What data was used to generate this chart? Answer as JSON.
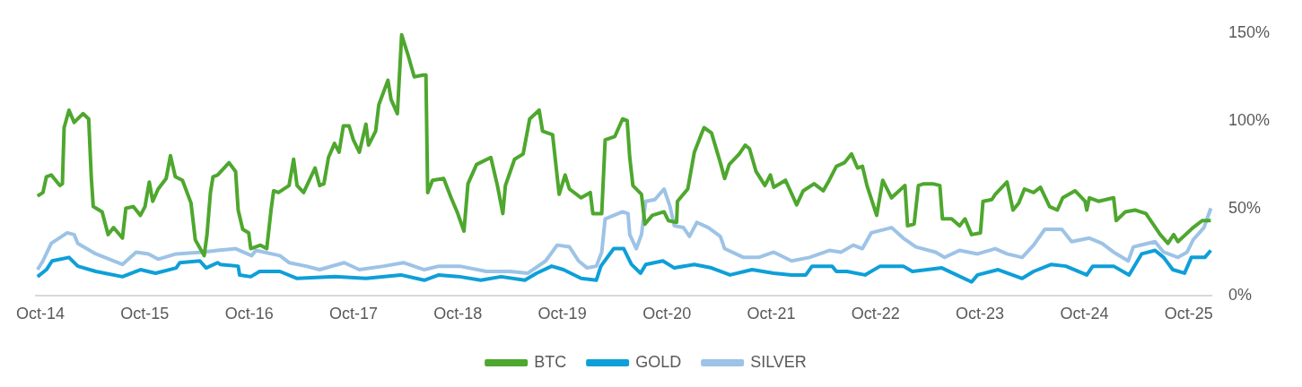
{
  "chart_data": {
    "type": "line",
    "xlim": [
      "2014-09-15",
      "2025-12-22"
    ],
    "xticks": [
      {
        "value": "2014-10",
        "label": "Oct-14"
      },
      {
        "value": "2015-10",
        "label": "Oct-15"
      },
      {
        "value": "2016-10",
        "label": "Oct-16"
      },
      {
        "value": "2017-10",
        "label": "Oct-17"
      },
      {
        "value": "2018-10",
        "label": "Oct-18"
      },
      {
        "value": "2019-10",
        "label": "Oct-19"
      },
      {
        "value": "2020-10",
        "label": "Oct-20"
      },
      {
        "value": "2021-10",
        "label": "Oct-21"
      },
      {
        "value": "2022-10",
        "label": "Oct-22"
      },
      {
        "value": "2023-10",
        "label": "Oct-23"
      },
      {
        "value": "2024-10",
        "label": "Oct-24"
      },
      {
        "value": "2025-10",
        "label": "Oct-25"
      }
    ],
    "ylim": [
      0,
      150
    ],
    "yticks": [
      {
        "value": 0,
        "label": "0%"
      },
      {
        "value": 50,
        "label": "50%"
      },
      {
        "value": 100,
        "label": "100%"
      },
      {
        "value": 150,
        "label": "150%"
      }
    ],
    "grid": false,
    "legend": "bottom",
    "series": [
      {
        "name": "BTC",
        "color": "#4ea72e",
        "x": [
          "2014-09-21",
          "2014-10-10",
          "2014-10-22",
          "2014-11-08",
          "2014-12-08",
          "2014-12-17",
          "2014-12-23",
          "2015-01-09",
          "2015-01-27",
          "2015-02-27",
          "2015-03-19",
          "2015-03-28",
          "2015-04-04",
          "2015-05-05",
          "2015-05-26",
          "2015-06-14",
          "2015-07-15",
          "2015-07-27",
          "2015-08-22",
          "2015-09-16",
          "2015-10-02",
          "2015-10-17",
          "2015-10-29",
          "2015-11-17",
          "2015-12-15",
          "2015-12-30",
          "2016-01-16",
          "2016-02-10",
          "2016-03-11",
          "2016-03-26",
          "2016-04-26",
          "2016-05-06",
          "2016-05-18",
          "2016-05-27",
          "2016-06-12",
          "2016-07-22",
          "2016-08-14",
          "2016-08-23",
          "2016-09-08",
          "2016-09-29",
          "2016-10-06",
          "2016-11-09",
          "2016-12-01",
          "2016-12-16",
          "2016-12-25",
          "2017-01-11",
          "2017-02-17",
          "2017-03-05",
          "2017-03-17",
          "2017-04-09",
          "2017-05-19",
          "2017-06-04",
          "2017-06-19",
          "2017-07-05",
          "2017-07-26",
          "2017-08-11",
          "2017-08-26",
          "2017-09-15",
          "2017-09-30",
          "2017-10-21",
          "2017-11-13",
          "2017-11-22",
          "2017-12-17",
          "2017-12-28",
          "2018-01-29",
          "2018-02-09",
          "2018-03-03",
          "2018-03-18",
          "2018-04-10",
          "2018-05-01",
          "2018-06-02",
          "2018-06-11",
          "2018-06-17",
          "2018-07-04",
          "2018-08-12",
          "2018-09-07",
          "2018-09-28",
          "2018-10-22",
          "2018-11-05",
          "2018-12-05",
          "2019-01-24",
          "2019-02-16",
          "2019-03-07",
          "2019-03-16",
          "2019-04-17",
          "2019-05-17",
          "2019-06-09",
          "2019-07-12",
          "2019-07-24",
          "2019-08-28",
          "2019-09-20",
          "2019-10-11",
          "2019-10-26",
          "2019-12-06",
          "2020-01-07",
          "2020-01-16",
          "2020-02-16",
          "2020-02-28",
          "2020-04-02",
          "2020-04-29",
          "2020-05-15",
          "2020-05-24",
          "2020-06-04",
          "2020-07-04",
          "2020-07-16",
          "2020-08-11",
          "2020-09-21",
          "2020-10-06",
          "2020-11-04",
          "2020-11-07",
          "2020-12-13",
          "2021-01-05",
          "2021-01-29",
          "2021-02-08",
          "2021-03-06",
          "2021-04-06",
          "2021-04-21",
          "2021-05-07",
          "2021-06-11",
          "2021-07-02",
          "2021-07-17",
          "2021-08-09",
          "2021-09-09",
          "2021-09-28",
          "2021-10-10",
          "2021-11-20",
          "2021-12-29",
          "2022-01-21",
          "2022-02-28",
          "2022-04-01",
          "2022-04-22",
          "2022-05-17",
          "2022-06-14",
          "2022-07-09",
          "2022-07-30",
          "2022-08-16",
          "2022-09-01",
          "2022-10-05",
          "2022-10-26",
          "2022-11-26",
          "2023-01-12",
          "2023-01-21",
          "2023-02-13",
          "2023-02-28",
          "2023-03-19",
          "2023-04-20",
          "2023-05-14",
          "2023-05-23",
          "2023-06-24",
          "2023-07-22",
          "2023-08-10",
          "2023-09-02",
          "2023-10-03",
          "2023-10-12",
          "2023-11-12",
          "2023-11-24",
          "2024-01-04",
          "2024-01-25",
          "2024-02-14",
          "2024-03-05",
          "2024-04-06",
          "2024-04-30",
          "2024-06-01",
          "2024-06-28",
          "2024-07-17",
          "2024-08-29",
          "2024-10-03",
          "2024-10-09",
          "2024-10-18",
          "2024-11-19",
          "2025-01-11",
          "2025-01-20",
          "2025-02-21",
          "2025-03-27",
          "2025-05-04",
          "2025-06-23",
          "2025-07-20",
          "2025-08-09",
          "2025-08-24",
          "2025-10-16",
          "2025-11-17",
          "2025-12-17"
        ],
        "values": [
          57,
          59,
          68,
          69,
          63,
          64,
          96,
          106,
          99,
          104,
          101,
          68,
          51,
          48,
          35,
          39,
          33,
          50,
          51,
          46,
          51,
          65,
          54,
          61,
          67,
          80,
          68,
          66,
          53,
          32,
          23,
          35,
          59,
          68,
          69,
          76,
          71,
          49,
          38,
          36,
          27,
          29,
          27,
          49,
          60,
          59,
          63,
          78,
          63,
          59,
          73,
          63,
          64,
          79,
          87,
          82,
          97,
          97,
          89,
          82,
          98,
          86,
          94,
          109,
          123,
          112,
          104,
          149,
          137,
          125,
          126,
          126,
          59,
          66,
          67,
          56,
          48,
          37,
          64,
          75,
          79,
          63,
          47,
          63,
          78,
          81,
          101,
          106,
          94,
          92,
          58,
          69,
          61,
          56,
          59,
          47,
          47,
          89,
          91,
          101,
          100,
          79,
          63,
          58,
          41,
          46,
          48,
          43,
          42,
          54,
          61,
          82,
          92,
          96,
          93,
          76,
          67,
          75,
          81,
          86,
          84,
          71,
          63,
          69,
          62,
          66,
          52,
          60,
          64,
          60,
          66,
          74,
          76,
          81,
          73,
          74,
          63,
          46,
          66,
          56,
          63,
          40,
          41,
          63,
          64,
          64,
          63,
          44,
          44,
          40,
          44,
          35,
          36,
          54,
          55,
          58,
          65,
          49,
          53,
          61,
          59,
          62,
          51,
          49,
          56,
          60,
          54,
          49,
          56,
          54,
          56,
          43,
          48,
          49,
          47,
          35,
          30,
          35,
          31,
          39,
          43,
          43
        ]
      },
      {
        "name": "GOLD",
        "color": "#0e9fd8",
        "x": [
          "2014-09-21",
          "2014-10-22",
          "2014-11-11",
          "2015-01-09",
          "2015-02-09",
          "2015-04-13",
          "2015-07-15",
          "2015-09-16",
          "2015-11-08",
          "2016-01-19",
          "2016-02-01",
          "2016-04-11",
          "2016-05-03",
          "2016-06-12",
          "2016-06-21",
          "2016-08-23",
          "2016-08-28",
          "2016-10-06",
          "2016-11-06",
          "2017-01-16",
          "2017-03-17",
          "2017-07-28",
          "2017-11-13",
          "2018-03-15",
          "2018-06-05",
          "2018-07-26",
          "2018-10-07",
          "2018-12-20",
          "2019-03-01",
          "2019-05-23",
          "2019-07-03",
          "2019-08-25",
          "2019-10-05",
          "2019-12-06",
          "2020-01-28",
          "2020-02-13",
          "2020-03-29",
          "2020-05-03",
          "2020-05-30",
          "2020-07-01",
          "2020-07-19",
          "2020-09-17",
          "2020-10-27",
          "2021-01-05",
          "2021-03-06",
          "2021-05-10",
          "2021-07-26",
          "2021-10-10",
          "2021-12-11",
          "2022-01-30",
          "2022-02-21",
          "2022-05-02",
          "2022-05-17",
          "2022-06-23",
          "2022-08-25",
          "2022-10-17",
          "2023-01-06",
          "2023-02-07",
          "2023-05-21",
          "2023-09-02",
          "2023-09-23",
          "2023-12-04",
          "2024-02-26",
          "2024-04-06",
          "2024-06-07",
          "2024-07-28",
          "2024-10-09",
          "2024-10-30",
          "2025-01-11",
          "2025-03-06",
          "2025-04-19",
          "2025-06-05",
          "2025-07-05",
          "2025-08-06",
          "2025-09-16",
          "2025-10-10",
          "2025-11-26",
          "2025-12-17"
        ],
        "values": [
          11,
          15,
          20,
          22,
          17,
          14,
          11,
          15,
          13,
          16,
          19,
          20,
          16,
          19,
          18,
          17,
          12,
          11,
          14,
          14,
          10,
          11,
          10,
          12,
          9,
          12,
          11,
          9,
          11,
          9,
          13,
          17,
          15,
          10,
          9,
          17,
          27,
          27,
          18,
          13,
          18,
          20,
          16,
          18,
          16,
          12,
          15,
          13,
          12,
          12,
          17,
          17,
          14,
          14,
          12,
          17,
          17,
          14,
          16,
          8,
          12,
          15,
          10,
          14,
          18,
          17,
          12,
          17,
          17,
          12,
          24,
          26,
          22,
          15,
          13,
          22,
          22,
          26
        ]
      },
      {
        "name": "SILVER",
        "color": "#9dc3e6",
        "x": [
          "2014-09-21",
          "2014-10-10",
          "2014-11-08",
          "2015-01-03",
          "2015-01-27",
          "2015-02-09",
          "2015-04-13",
          "2015-07-15",
          "2015-09-01",
          "2015-10-14",
          "2015-11-17",
          "2016-01-19",
          "2016-04-20",
          "2016-06-12",
          "2016-08-14",
          "2016-10-09",
          "2016-10-24",
          "2017-01-16",
          "2017-02-17",
          "2017-04-18",
          "2017-06-04",
          "2017-08-29",
          "2017-10-21",
          "2018-01-14",
          "2018-03-24",
          "2018-06-05",
          "2018-07-26",
          "2018-10-07",
          "2019-01-09",
          "2019-04-01",
          "2019-06-03",
          "2019-08-04",
          "2019-09-13",
          "2019-10-26",
          "2019-11-27",
          "2019-12-27",
          "2020-01-28",
          "2020-02-16",
          "2020-02-28",
          "2020-04-29",
          "2020-05-18",
          "2020-05-24",
          "2020-06-16",
          "2020-07-04",
          "2020-07-19",
          "2020-08-20",
          "2020-09-21",
          "2020-10-12",
          "2020-10-27",
          "2020-11-28",
          "2020-12-19",
          "2021-01-14",
          "2021-02-23",
          "2021-04-06",
          "2021-04-21",
          "2021-06-26",
          "2021-08-18",
          "2021-10-10",
          "2021-12-11",
          "2022-02-12",
          "2022-04-22",
          "2022-06-02",
          "2022-07-15",
          "2022-08-16",
          "2022-09-16",
          "2022-11-26",
          "2023-01-06",
          "2023-02-19",
          "2023-04-29",
          "2023-05-30",
          "2023-07-22",
          "2023-09-23",
          "2023-11-24",
          "2024-01-04",
          "2024-02-26",
          "2024-04-06",
          "2024-05-15",
          "2024-07-14",
          "2024-08-17",
          "2024-10-18",
          "2024-12-01",
          "2025-01-11",
          "2025-03-03",
          "2025-03-21",
          "2025-06-05",
          "2025-07-05",
          "2025-08-24",
          "2025-09-25",
          "2025-10-16",
          "2025-11-23",
          "2025-12-17"
        ],
        "values": [
          15,
          20,
          30,
          36,
          35,
          30,
          24,
          18,
          25,
          24,
          21,
          24,
          25,
          26,
          27,
          23,
          26,
          23,
          19,
          17,
          15,
          19,
          15,
          17,
          19,
          15,
          17,
          17,
          14,
          14,
          13,
          20,
          29,
          28,
          20,
          16,
          17,
          25,
          44,
          48,
          47,
          35,
          27,
          35,
          54,
          55,
          61,
          51,
          40,
          39,
          34,
          42,
          39,
          34,
          27,
          22,
          22,
          25,
          20,
          22,
          26,
          25,
          29,
          27,
          36,
          39,
          33,
          28,
          25,
          22,
          26,
          24,
          27,
          24,
          22,
          29,
          38,
          38,
          31,
          33,
          30,
          25,
          20,
          28,
          31,
          25,
          22,
          25,
          32,
          39,
          50
        ]
      }
    ]
  }
}
